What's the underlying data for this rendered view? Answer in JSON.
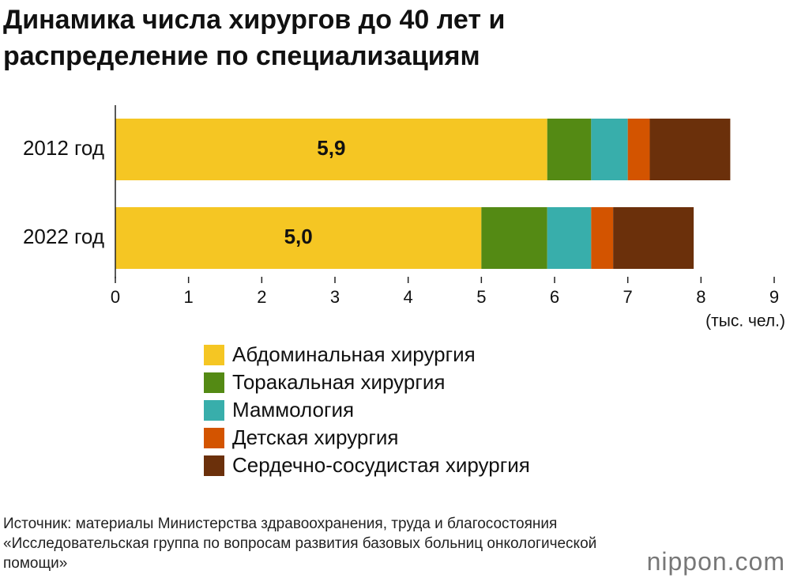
{
  "chart_data": {
    "type": "stacked_bar_horizontal",
    "title": "Динамика числа хирургов до 40 лет и распределение по специализациям",
    "categories": [
      "2012 год",
      "2022 год"
    ],
    "series": [
      {
        "name": "Абдоминальная хирургия",
        "color": "#f5c623",
        "values": [
          5.9,
          5.0
        ],
        "value_labels": [
          "5,9",
          "5,0"
        ]
      },
      {
        "name": "Торакальная хирургия",
        "color": "#548a14",
        "values": [
          0.6,
          0.9
        ]
      },
      {
        "name": "Маммология",
        "color": "#38aeab",
        "values": [
          0.5,
          0.6
        ]
      },
      {
        "name": "Детская хирургия",
        "color": "#d35400",
        "values": [
          0.3,
          0.3
        ]
      },
      {
        "name": "Сердечно-сосудистая хирургия",
        "color": "#6b300b",
        "values": [
          1.1,
          1.1
        ]
      }
    ],
    "xlim": [
      0,
      9
    ],
    "xticks": [
      0,
      1,
      2,
      3,
      4,
      5,
      6,
      7,
      8,
      9
    ],
    "x_unit": "(тыс. чел.)",
    "source": "Источник: материалы Министерства здравоохранения, труда и благосостояния «Исследовательская группа по вопросам развития базовых больниц онкологической помощи»",
    "logo": "nippon.com"
  }
}
